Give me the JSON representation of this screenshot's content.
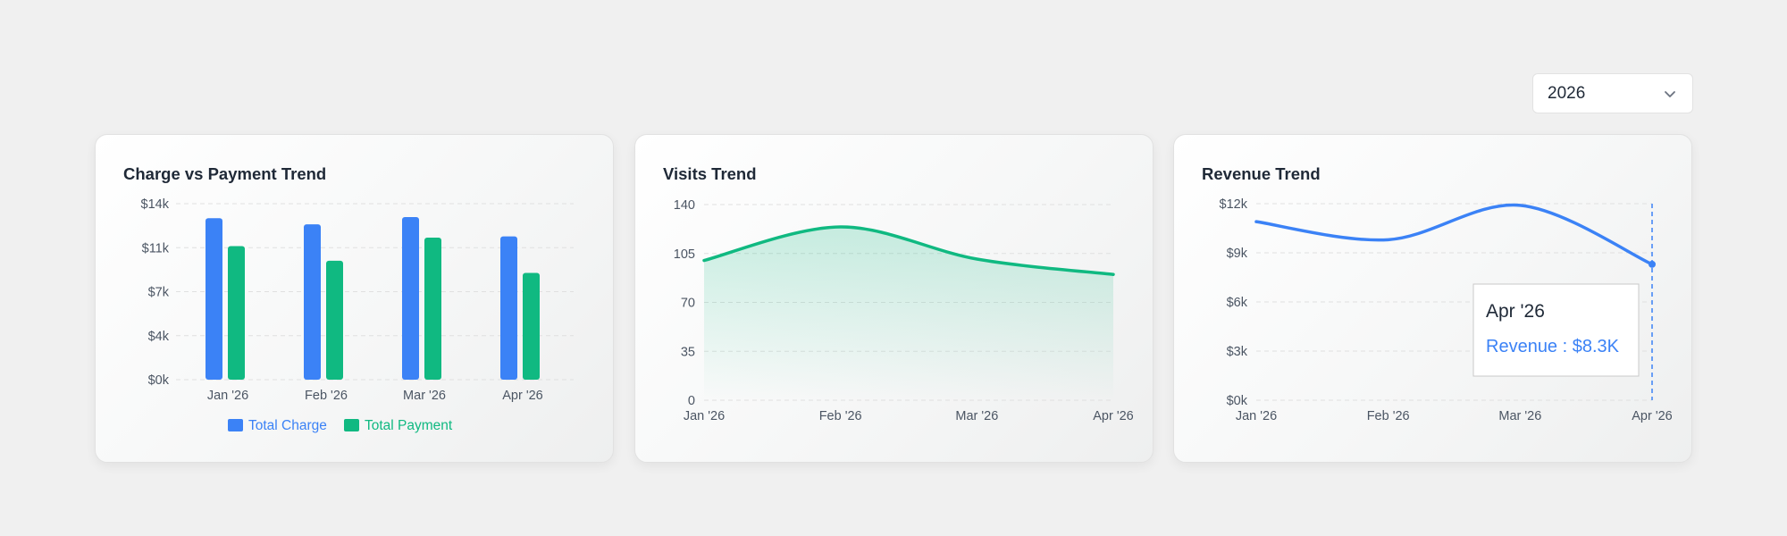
{
  "year_selector": {
    "value": "2026",
    "icon": "chevron-down-icon"
  },
  "colors": {
    "blue": "#3b82f6",
    "green": "#10b981",
    "grid": "#e0e0e0",
    "text": "#4b5563"
  },
  "chart_data": [
    {
      "type": "bar",
      "title": "Charge vs Payment Trend",
      "categories": [
        "Jan '26",
        "Feb '26",
        "Mar '26",
        "Apr '26"
      ],
      "series": [
        {
          "name": "Total Charge",
          "color": "#3b82f6",
          "values": [
            13300,
            12800,
            13400,
            11800
          ]
        },
        {
          "name": "Total Payment",
          "color": "#10b981",
          "values": [
            11000,
            9800,
            11700,
            8800
          ]
        }
      ],
      "ylim": [
        0,
        14500
      ],
      "yticks": [
        0,
        3625,
        7250,
        10875,
        14500
      ],
      "ytick_labels": [
        "$0k",
        "$4k",
        "$7k",
        "$11k",
        "$14k"
      ],
      "grid": true,
      "legend": "bottom"
    },
    {
      "type": "area",
      "title": "Visits Trend",
      "x": [
        "Jan '26",
        "Feb '26",
        "Mar '26",
        "Apr '26"
      ],
      "series": [
        {
          "color": "#10b981",
          "values": [
            100,
            124,
            101,
            90
          ]
        }
      ],
      "ylim": [
        0,
        140
      ],
      "yticks": [
        0,
        35,
        70,
        105,
        140
      ],
      "ytick_labels": [
        "0",
        "35",
        "70",
        "105",
        "140"
      ],
      "grid": true
    },
    {
      "type": "line",
      "title": "Revenue Trend",
      "x": [
        "Jan '26",
        "Feb '26",
        "Mar '26",
        "Apr '26"
      ],
      "series": [
        {
          "name": "Revenue",
          "color": "#3b82f6",
          "values": [
            10900,
            9800,
            11900,
            8300
          ]
        }
      ],
      "ylim": [
        0,
        12000
      ],
      "yticks": [
        0,
        3000,
        6000,
        9000,
        12000
      ],
      "ytick_labels": [
        "$0k",
        "$3k",
        "$6k",
        "$9k",
        "$12k"
      ],
      "grid": true,
      "tooltip": {
        "title": "Apr '26",
        "label": "Revenue : $8.3K"
      }
    }
  ]
}
